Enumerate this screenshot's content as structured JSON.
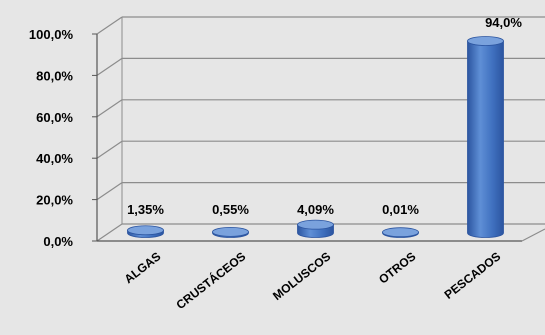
{
  "chart_data": {
    "type": "bar",
    "title": "",
    "xlabel": "",
    "ylabel": "",
    "categories": [
      "ALGAS",
      "CRUSTÁCEOS",
      "MOLUSCOS",
      "OTROS",
      "PESCADOS"
    ],
    "values": [
      1.35,
      0.55,
      4.09,
      0.01,
      94.0
    ],
    "data_labels": [
      "1,35%",
      "0,55%",
      "4,09%",
      "0,01%",
      "94,0%"
    ],
    "ylim": [
      0,
      100
    ],
    "yticks": [
      "0,0%",
      "20,0%",
      "40,0%",
      "60,0%",
      "80,0%",
      "100,0%"
    ],
    "grid": true,
    "legend": "none",
    "colors": {
      "bar_light": "#5f8fd6",
      "bar_mid": "#3f70bf",
      "bar_dark": "#2c55a0",
      "bar_top": "#7aa2dd",
      "background": "#e6e6e6",
      "wall": "#e6e6e6",
      "gridline": "#8c8c8c"
    }
  }
}
